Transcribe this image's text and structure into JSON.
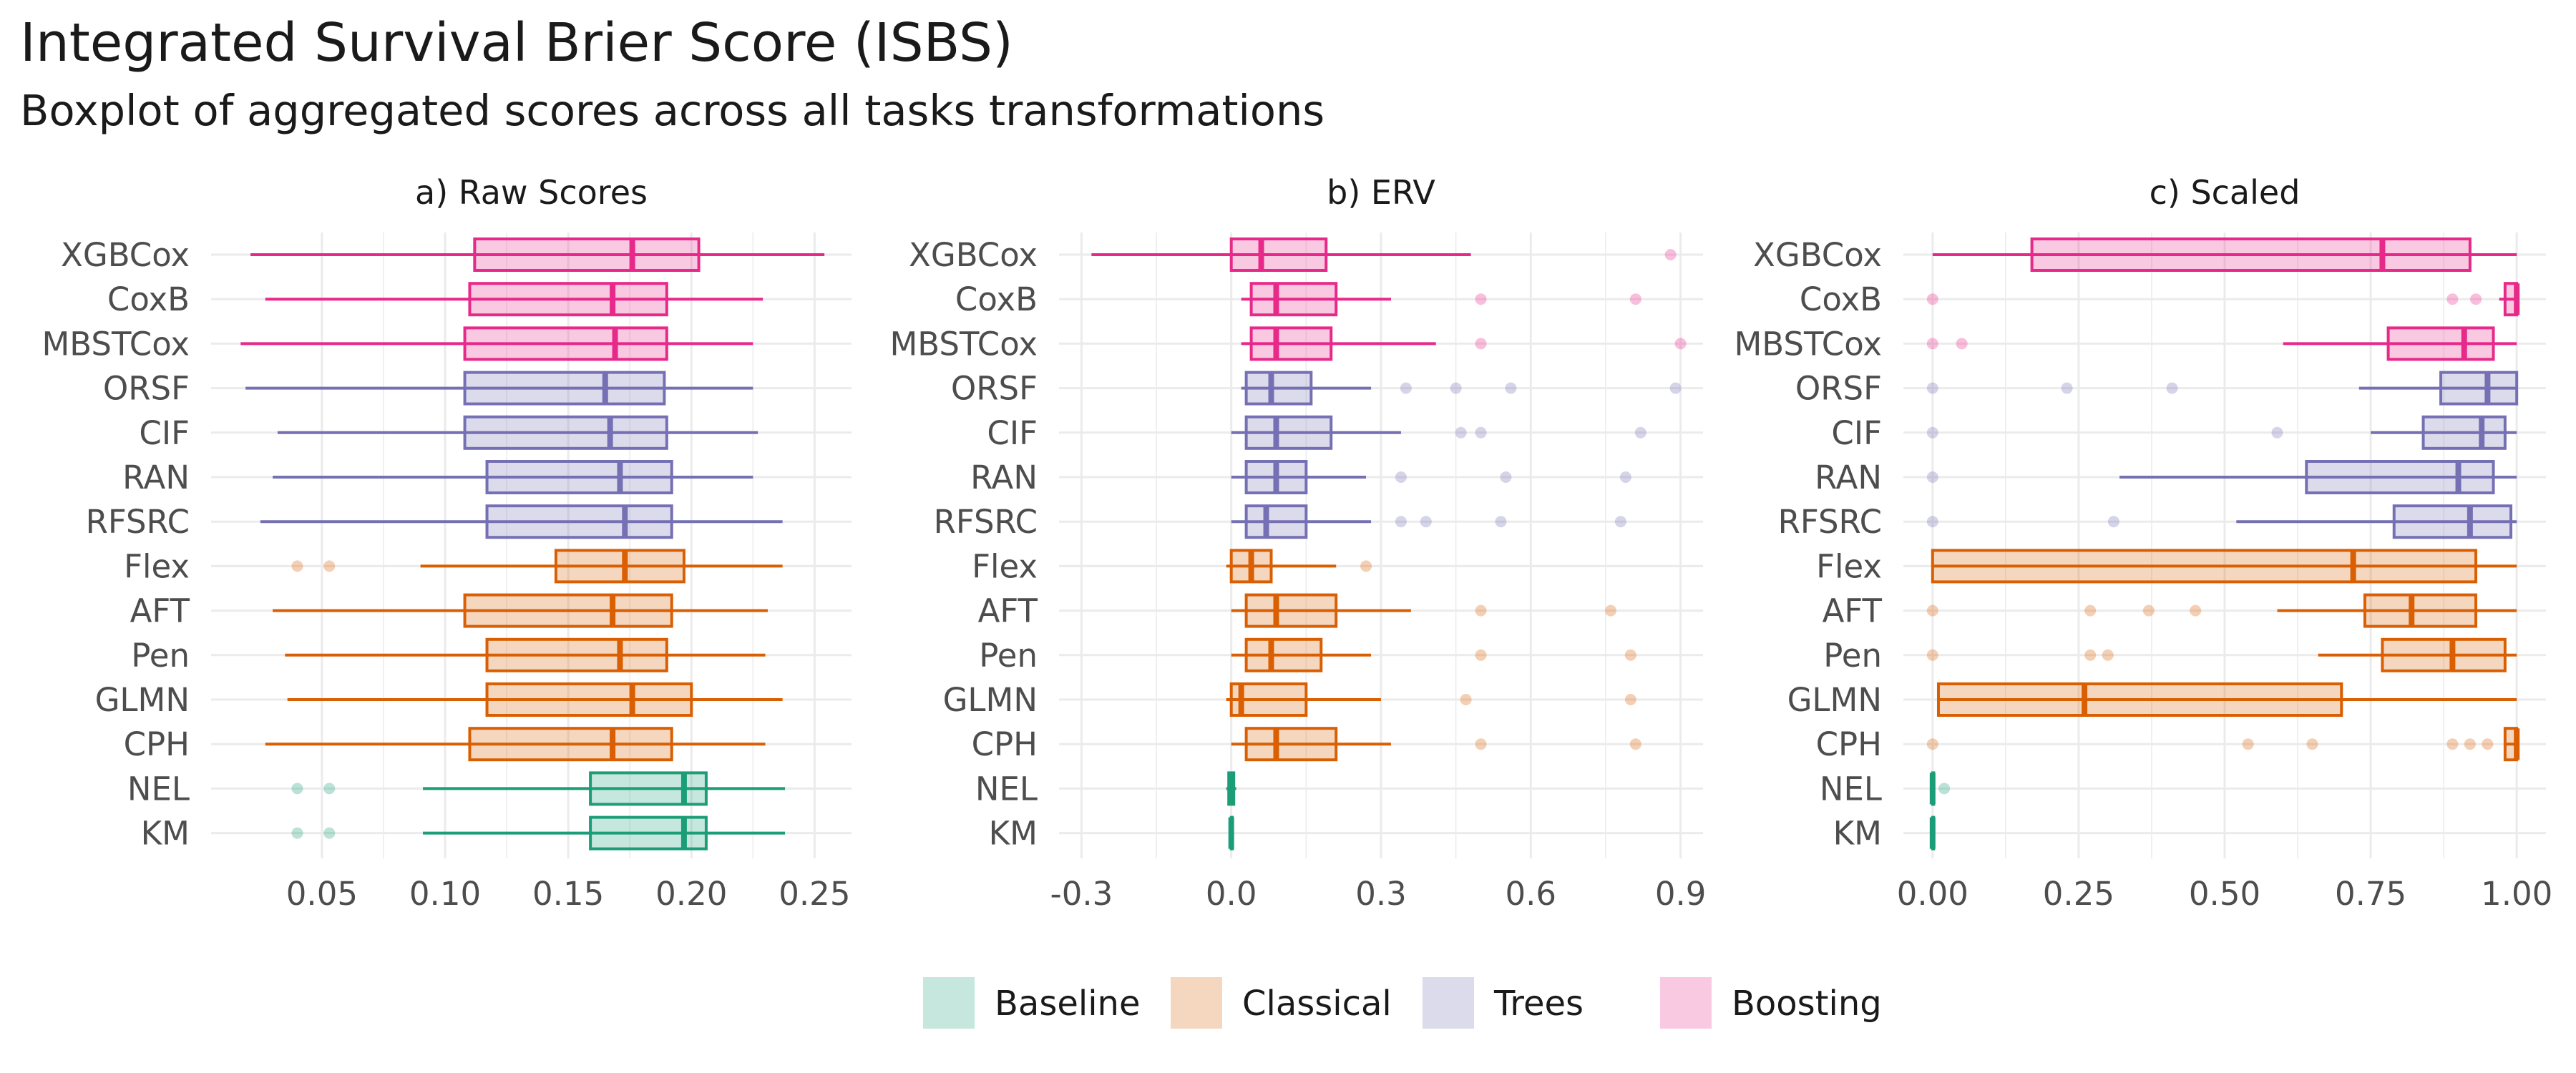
{
  "title": "Integrated Survival Brier Score (ISBS)",
  "subtitle": "Boxplot of aggregated scores across all tasks transformations",
  "colors": {
    "Baseline": "#1b9e77",
    "Classical": "#d95f02",
    "Trees": "#7570b3",
    "Boosting": "#e7298a",
    "grid": "#ebebeb"
  },
  "chart_data": [
    {
      "type": "boxplot",
      "title": "a) Raw Scores",
      "xlim": [
        0.005,
        0.265
      ],
      "ticks": [
        0.05,
        0.1,
        0.15,
        0.2,
        0.25
      ],
      "tick_labels": [
        "0.05",
        "0.10",
        "0.15",
        "0.20",
        "0.25"
      ],
      "grid": true,
      "rows": [
        {
          "label": "XGBCox",
          "group": "Boosting",
          "min": 0.021,
          "q1": 0.112,
          "median": 0.176,
          "q3": 0.203,
          "max": 0.254,
          "outliers": []
        },
        {
          "label": "CoxB",
          "group": "Boosting",
          "min": 0.027,
          "q1": 0.11,
          "median": 0.168,
          "q3": 0.19,
          "max": 0.229,
          "outliers": []
        },
        {
          "label": "MBSTCox",
          "group": "Boosting",
          "min": 0.017,
          "q1": 0.108,
          "median": 0.169,
          "q3": 0.19,
          "max": 0.225,
          "outliers": []
        },
        {
          "label": "ORSF",
          "group": "Trees",
          "min": 0.019,
          "q1": 0.108,
          "median": 0.165,
          "q3": 0.189,
          "max": 0.225,
          "outliers": []
        },
        {
          "label": "CIF",
          "group": "Trees",
          "min": 0.032,
          "q1": 0.108,
          "median": 0.167,
          "q3": 0.19,
          "max": 0.227,
          "outliers": []
        },
        {
          "label": "RAN",
          "group": "Trees",
          "min": 0.03,
          "q1": 0.117,
          "median": 0.171,
          "q3": 0.192,
          "max": 0.225,
          "outliers": []
        },
        {
          "label": "RFSRC",
          "group": "Trees",
          "min": 0.025,
          "q1": 0.117,
          "median": 0.173,
          "q3": 0.192,
          "max": 0.237,
          "outliers": []
        },
        {
          "label": "Flex",
          "group": "Classical",
          "min": 0.09,
          "q1": 0.145,
          "median": 0.173,
          "q3": 0.197,
          "max": 0.237,
          "outliers": [
            0.04,
            0.053
          ]
        },
        {
          "label": "AFT",
          "group": "Classical",
          "min": 0.03,
          "q1": 0.108,
          "median": 0.168,
          "q3": 0.192,
          "max": 0.231,
          "outliers": []
        },
        {
          "label": "Pen",
          "group": "Classical",
          "min": 0.035,
          "q1": 0.117,
          "median": 0.171,
          "q3": 0.19,
          "max": 0.23,
          "outliers": []
        },
        {
          "label": "GLMN",
          "group": "Classical",
          "min": 0.036,
          "q1": 0.117,
          "median": 0.176,
          "q3": 0.2,
          "max": 0.237,
          "outliers": []
        },
        {
          "label": "CPH",
          "group": "Classical",
          "min": 0.027,
          "q1": 0.11,
          "median": 0.168,
          "q3": 0.192,
          "max": 0.23,
          "outliers": []
        },
        {
          "label": "NEL",
          "group": "Baseline",
          "min": 0.091,
          "q1": 0.159,
          "median": 0.197,
          "q3": 0.206,
          "max": 0.238,
          "outliers": [
            0.04,
            0.053
          ]
        },
        {
          "label": "KM",
          "group": "Baseline",
          "min": 0.091,
          "q1": 0.159,
          "median": 0.197,
          "q3": 0.206,
          "max": 0.238,
          "outliers": [
            0.04,
            0.053
          ]
        }
      ]
    },
    {
      "type": "boxplot",
      "title": "b) ERV",
      "xlim": [
        -0.345,
        0.945
      ],
      "ticks": [
        -0.3,
        0.0,
        0.3,
        0.6,
        0.9
      ],
      "tick_labels": [
        "-0.3",
        "0.0",
        "0.3",
        "0.6",
        "0.9"
      ],
      "grid": true,
      "rows": [
        {
          "label": "XGBCox",
          "group": "Boosting",
          "min": -0.28,
          "q1": 0.0,
          "median": 0.06,
          "q3": 0.19,
          "max": 0.48,
          "outliers": [
            0.88
          ]
        },
        {
          "label": "CoxB",
          "group": "Boosting",
          "min": 0.02,
          "q1": 0.04,
          "median": 0.09,
          "q3": 0.21,
          "max": 0.32,
          "outliers": [
            0.5,
            0.81
          ]
        },
        {
          "label": "MBSTCox",
          "group": "Boosting",
          "min": 0.02,
          "q1": 0.04,
          "median": 0.09,
          "q3": 0.2,
          "max": 0.41,
          "outliers": [
            0.5,
            0.9
          ]
        },
        {
          "label": "ORSF",
          "group": "Trees",
          "min": 0.02,
          "q1": 0.03,
          "median": 0.08,
          "q3": 0.16,
          "max": 0.28,
          "outliers": [
            0.35,
            0.45,
            0.56,
            0.89
          ]
        },
        {
          "label": "CIF",
          "group": "Trees",
          "min": 0.0,
          "q1": 0.03,
          "median": 0.09,
          "q3": 0.2,
          "max": 0.34,
          "outliers": [
            0.46,
            0.5,
            0.82
          ]
        },
        {
          "label": "RAN",
          "group": "Trees",
          "min": 0.0,
          "q1": 0.03,
          "median": 0.09,
          "q3": 0.15,
          "max": 0.27,
          "outliers": [
            0.34,
            0.55,
            0.79
          ]
        },
        {
          "label": "RFSRC",
          "group": "Trees",
          "min": 0.0,
          "q1": 0.03,
          "median": 0.07,
          "q3": 0.15,
          "max": 0.28,
          "outliers": [
            0.34,
            0.39,
            0.54,
            0.78
          ]
        },
        {
          "label": "Flex",
          "group": "Classical",
          "min": -0.01,
          "q1": 0.0,
          "median": 0.04,
          "q3": 0.08,
          "max": 0.21,
          "outliers": [
            0.27
          ]
        },
        {
          "label": "AFT",
          "group": "Classical",
          "min": 0.0,
          "q1": 0.03,
          "median": 0.09,
          "q3": 0.21,
          "max": 0.36,
          "outliers": [
            0.5,
            0.76
          ]
        },
        {
          "label": "Pen",
          "group": "Classical",
          "min": 0.0,
          "q1": 0.03,
          "median": 0.08,
          "q3": 0.18,
          "max": 0.28,
          "outliers": [
            0.5,
            0.8
          ]
        },
        {
          "label": "GLMN",
          "group": "Classical",
          "min": -0.01,
          "q1": 0.0,
          "median": 0.02,
          "q3": 0.15,
          "max": 0.3,
          "outliers": [
            0.47,
            0.8
          ]
        },
        {
          "label": "CPH",
          "group": "Classical",
          "min": 0.0,
          "q1": 0.03,
          "median": 0.09,
          "q3": 0.21,
          "max": 0.32,
          "outliers": [
            0.5,
            0.81
          ]
        },
        {
          "label": "NEL",
          "group": "Baseline",
          "min": -0.01,
          "q1": -0.005,
          "median": 0.0,
          "q3": 0.005,
          "max": 0.01,
          "outliers": []
        },
        {
          "label": "KM",
          "group": "Baseline",
          "min": -0.005,
          "q1": 0.0,
          "median": 0.0,
          "q3": 0.0,
          "max": 0.005,
          "outliers": []
        }
      ]
    },
    {
      "type": "boxplot",
      "title": "c) Scaled",
      "xlim": [
        -0.05,
        1.05
      ],
      "ticks": [
        0.0,
        0.25,
        0.5,
        0.75,
        1.0
      ],
      "tick_labels": [
        "0.00",
        "0.25",
        "0.50",
        "0.75",
        "1.00"
      ],
      "grid": true,
      "rows": [
        {
          "label": "XGBCox",
          "group": "Boosting",
          "min": 0.0,
          "q1": 0.17,
          "median": 0.77,
          "q3": 0.92,
          "max": 1.0,
          "outliers": []
        },
        {
          "label": "CoxB",
          "group": "Boosting",
          "min": 0.97,
          "q1": 0.98,
          "median": 1.0,
          "q3": 1.0,
          "max": 1.0,
          "outliers": [
            0.0,
            0.89,
            0.93
          ]
        },
        {
          "label": "MBSTCox",
          "group": "Boosting",
          "min": 0.6,
          "q1": 0.78,
          "median": 0.91,
          "q3": 0.96,
          "max": 1.0,
          "outliers": [
            0.0,
            0.05
          ]
        },
        {
          "label": "ORSF",
          "group": "Trees",
          "min": 0.73,
          "q1": 0.87,
          "median": 0.95,
          "q3": 1.0,
          "max": 1.0,
          "outliers": [
            0.0,
            0.23,
            0.41
          ]
        },
        {
          "label": "CIF",
          "group": "Trees",
          "min": 0.75,
          "q1": 0.84,
          "median": 0.94,
          "q3": 0.98,
          "max": 1.0,
          "outliers": [
            0.0,
            0.59
          ]
        },
        {
          "label": "RAN",
          "group": "Trees",
          "min": 0.32,
          "q1": 0.64,
          "median": 0.9,
          "q3": 0.96,
          "max": 1.0,
          "outliers": [
            0.0
          ]
        },
        {
          "label": "RFSRC",
          "group": "Trees",
          "min": 0.52,
          "q1": 0.79,
          "median": 0.92,
          "q3": 0.99,
          "max": 1.0,
          "outliers": [
            0.0,
            0.31
          ]
        },
        {
          "label": "Flex",
          "group": "Classical",
          "min": 0.0,
          "q1": 0.0,
          "median": 0.72,
          "q3": 0.93,
          "max": 1.0,
          "outliers": []
        },
        {
          "label": "AFT",
          "group": "Classical",
          "min": 0.59,
          "q1": 0.74,
          "median": 0.82,
          "q3": 0.93,
          "max": 1.0,
          "outliers": [
            0.0,
            0.27,
            0.37,
            0.45
          ]
        },
        {
          "label": "Pen",
          "group": "Classical",
          "min": 0.66,
          "q1": 0.77,
          "median": 0.89,
          "q3": 0.98,
          "max": 1.0,
          "outliers": [
            0.0,
            0.27,
            0.3
          ]
        },
        {
          "label": "GLMN",
          "group": "Classical",
          "min": 0.01,
          "q1": 0.01,
          "median": 0.26,
          "q3": 0.7,
          "max": 1.0,
          "outliers": []
        },
        {
          "label": "CPH",
          "group": "Classical",
          "min": 0.98,
          "q1": 0.98,
          "median": 1.0,
          "q3": 1.0,
          "max": 1.0,
          "outliers": [
            0.0,
            0.54,
            0.65,
            0.89,
            0.92,
            0.95
          ]
        },
        {
          "label": "NEL",
          "group": "Baseline",
          "min": 0.0,
          "q1": 0.0,
          "median": 0.0,
          "q3": 0.0,
          "max": 0.0,
          "outliers": [
            0.02
          ]
        },
        {
          "label": "KM",
          "group": "Baseline",
          "min": 0.0,
          "q1": 0.0,
          "median": 0.0,
          "q3": 0.0,
          "max": 0.0,
          "outliers": []
        }
      ]
    }
  ],
  "legend": {
    "position": "bottom",
    "items": [
      {
        "label": "Baseline",
        "group": "Baseline"
      },
      {
        "label": "Classical",
        "group": "Classical"
      },
      {
        "label": "Trees",
        "group": "Trees"
      },
      {
        "label": "Boosting",
        "group": "Boosting"
      }
    ]
  }
}
